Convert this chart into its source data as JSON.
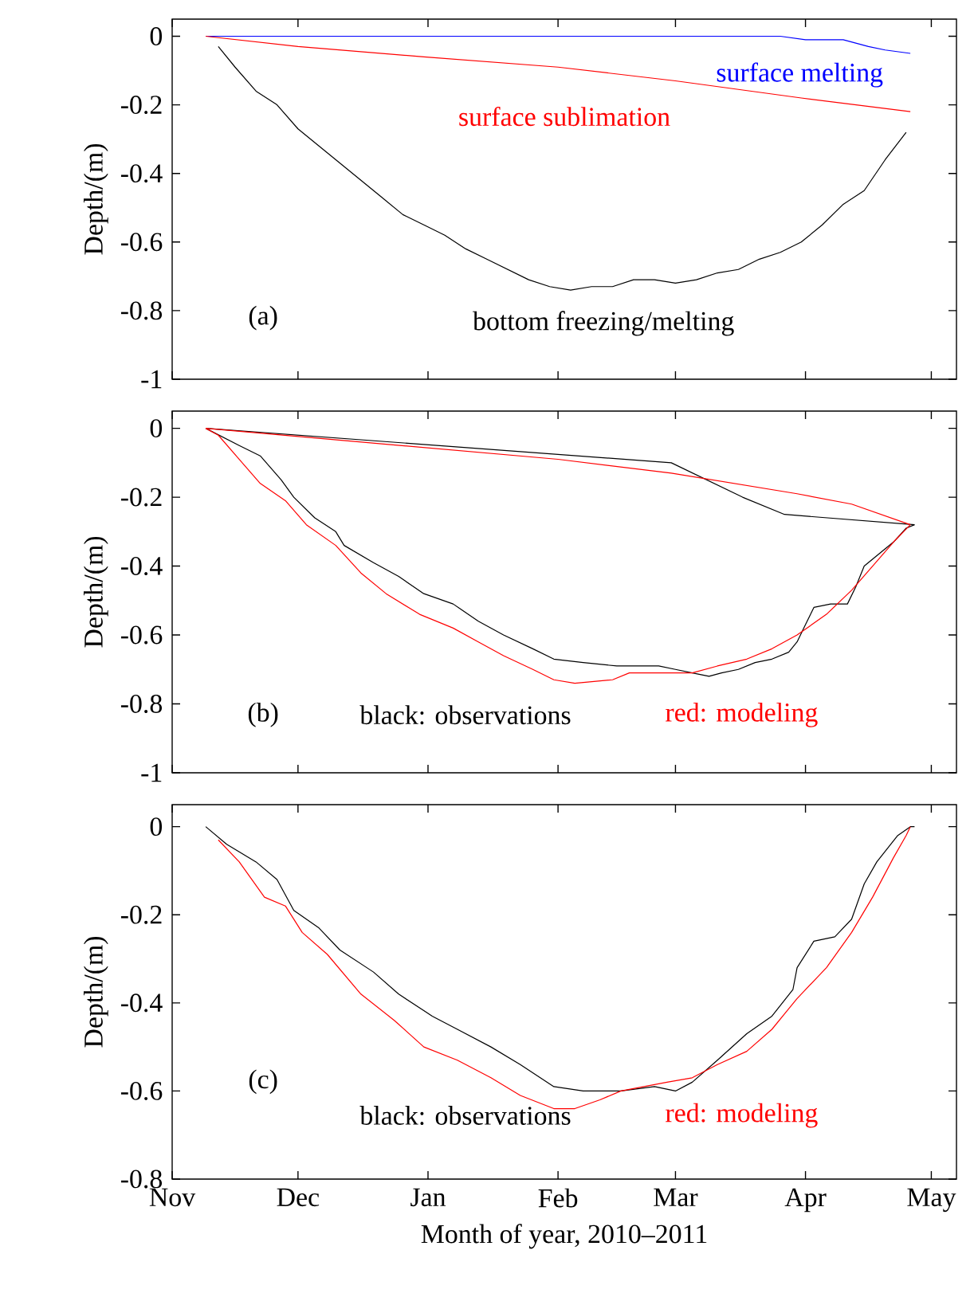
{
  "chart_data": [
    {
      "type": "line",
      "ylabel": "Depth/(m)",
      "tick_labels": "y",
      "annotations": [
        "(a)"
      ],
      "xlim": [
        "2010-11-01",
        "2011-05-07"
      ],
      "ylim": [
        -1,
        0.05
      ],
      "xticks": [
        {
          "value": "2010-11-01",
          "label": null
        },
        {
          "value": "2010-12-01",
          "label": null
        },
        {
          "value": "2011-01-01",
          "label": null
        },
        {
          "value": "2011-02-01",
          "label": null
        },
        {
          "value": "2011-03-01",
          "label": null
        },
        {
          "value": "2011-04-01",
          "label": null
        },
        {
          "value": "2011-05-01",
          "label": null
        }
      ],
      "yticks": [
        0,
        -0.2,
        -0.4,
        -0.6,
        -0.8,
        -1
      ],
      "series": [
        {
          "name": "surface melting",
          "color": "#0000ff",
          "x": [
            "2010-11-09",
            "2011-03-26",
            "2011-04-01",
            "2011-04-10",
            "2011-04-16",
            "2011-04-20",
            "2011-04-26"
          ],
          "values": [
            0,
            0,
            -0.01,
            -0.01,
            -0.03,
            -0.04,
            -0.05
          ]
        },
        {
          "name": "surface sublimation",
          "color": "#ff0000",
          "x": [
            "2010-11-09",
            "2010-12-01",
            "2010-12-31",
            "2011-02-01",
            "2011-03-01",
            "2011-03-31",
            "2011-04-26"
          ],
          "values": [
            0,
            -0.03,
            -0.06,
            -0.09,
            -0.13,
            -0.18,
            -0.22
          ]
        },
        {
          "name": "bottom freezing/melting",
          "color": "#000000",
          "x": [
            "2010-11-12",
            "2010-11-16",
            "2010-11-21",
            "2010-11-26",
            "2010-12-01",
            "2010-12-06",
            "2010-12-11",
            "2010-12-16",
            "2010-12-21",
            "2010-12-26",
            "2010-12-31",
            "2011-01-05",
            "2011-01-10",
            "2011-01-15",
            "2011-01-20",
            "2011-01-25",
            "2011-01-30",
            "2011-02-04",
            "2011-02-09",
            "2011-02-14",
            "2011-02-19",
            "2011-02-24",
            "2011-03-01",
            "2011-03-06",
            "2011-03-11",
            "2011-03-16",
            "2011-03-21",
            "2011-03-26",
            "2011-03-31",
            "2011-04-05",
            "2011-04-10",
            "2011-04-15",
            "2011-04-20",
            "2011-04-25"
          ],
          "values": [
            -0.03,
            -0.09,
            -0.16,
            -0.2,
            -0.27,
            -0.32,
            -0.37,
            -0.42,
            -0.47,
            -0.52,
            -0.55,
            -0.58,
            -0.62,
            -0.65,
            -0.68,
            -0.71,
            -0.73,
            -0.74,
            -0.73,
            -0.73,
            -0.71,
            -0.71,
            -0.72,
            -0.71,
            -0.69,
            -0.68,
            -0.65,
            -0.63,
            -0.6,
            -0.55,
            -0.49,
            -0.45,
            -0.36,
            -0.28
          ]
        }
      ]
    },
    {
      "type": "line",
      "ylabel": "Depth/(m)",
      "tick_labels": "y",
      "annotations": [
        "(b)"
      ],
      "xlim": [
        "2010-11-01",
        "2011-05-07"
      ],
      "ylim": [
        -1,
        0.05
      ],
      "xticks": [
        {
          "value": "2010-11-01",
          "label": null
        },
        {
          "value": "2010-12-01",
          "label": null
        },
        {
          "value": "2011-01-01",
          "label": null
        },
        {
          "value": "2011-02-01",
          "label": null
        },
        {
          "value": "2011-03-01",
          "label": null
        },
        {
          "value": "2011-04-01",
          "label": null
        },
        {
          "value": "2011-05-01",
          "label": null
        }
      ],
      "yticks": [
        0,
        -0.2,
        -0.4,
        -0.6,
        -0.8,
        -1
      ],
      "series": [
        {
          "name": "black: observations",
          "color": "#000000",
          "x": [
            "2010-11-09",
            "2010-11-17",
            "2010-11-22",
            "2010-11-27",
            "2010-11-30",
            "2010-12-05",
            "2010-12-10",
            "2010-12-12",
            "2010-12-19",
            "2010-12-25",
            "2010-12-31",
            "2011-01-07",
            "2011-01-13",
            "2011-01-19",
            "2011-01-26",
            "2011-01-31",
            "2011-02-07",
            "2011-02-15",
            "2011-02-20",
            "2011-02-25",
            "2011-03-01",
            "2011-03-05",
            "2011-03-09",
            "2011-03-12",
            "2011-03-16",
            "2011-03-20",
            "2011-03-24",
            "2011-03-28",
            "2011-03-30",
            "2011-04-01",
            "2011-04-03",
            "2011-04-07",
            "2011-04-11",
            "2011-04-13",
            "2011-04-15",
            "2011-04-18",
            "2011-04-22",
            "2011-04-25",
            "2011-04-27"
          ],
          "values": [
            0,
            -0.05,
            -0.08,
            -0.15,
            -0.2,
            -0.26,
            -0.3,
            -0.34,
            -0.39,
            -0.43,
            -0.48,
            -0.51,
            -0.56,
            -0.6,
            -0.64,
            -0.67,
            -0.68,
            -0.69,
            -0.69,
            -0.69,
            -0.7,
            -0.71,
            -0.72,
            -0.71,
            -0.7,
            -0.68,
            -0.67,
            -0.65,
            -0.62,
            -0.57,
            -0.52,
            -0.51,
            -0.51,
            -0.46,
            -0.4,
            -0.37,
            -0.33,
            -0.29,
            -0.28
          ]
        },
        {
          "color": "#000000",
          "x": [
            "2010-11-09",
            "2011-02-28",
            "2011-03-17",
            "2011-03-27",
            "2011-04-27"
          ],
          "values": [
            0,
            -0.1,
            -0.2,
            -0.25,
            -0.28
          ]
        },
        {
          "name": "red: modeling",
          "color": "#ff0000",
          "x": [
            "2010-11-09",
            "2010-11-12",
            "2010-11-17",
            "2010-11-22",
            "2010-11-28",
            "2010-12-03",
            "2010-12-10",
            "2010-12-16",
            "2010-12-22",
            "2010-12-30",
            "2011-01-07",
            "2011-01-13",
            "2011-01-19",
            "2011-01-26",
            "2011-01-31",
            "2011-02-05",
            "2011-02-14",
            "2011-02-18",
            "2011-02-27",
            "2011-03-05",
            "2011-03-11",
            "2011-03-18",
            "2011-03-24",
            "2011-03-30",
            "2011-04-06",
            "2011-04-12",
            "2011-04-17",
            "2011-04-22",
            "2011-04-26"
          ],
          "values": [
            0,
            -0.02,
            -0.09,
            -0.16,
            -0.21,
            -0.28,
            -0.34,
            -0.42,
            -0.48,
            -0.54,
            -0.58,
            -0.62,
            -0.66,
            -0.7,
            -0.73,
            -0.74,
            -0.73,
            -0.71,
            -0.71,
            -0.71,
            -0.69,
            -0.67,
            -0.64,
            -0.6,
            -0.54,
            -0.47,
            -0.4,
            -0.33,
            -0.28
          ]
        },
        {
          "color": "#ff0000",
          "x": [
            "2010-11-09",
            "2011-02-01",
            "2011-02-28",
            "2011-03-30",
            "2011-04-12",
            "2011-04-26"
          ],
          "values": [
            0,
            -0.09,
            -0.13,
            -0.19,
            -0.22,
            -0.28
          ]
        }
      ]
    },
    {
      "type": "line",
      "ylabel": "Depth/(m)",
      "xlabel": "Month of year, 2010–2011",
      "annotations": [
        "(c)"
      ],
      "xlim": [
        "2010-11-01",
        "2011-05-07"
      ],
      "ylim": [
        -0.8,
        0.05
      ],
      "xticks": [
        {
          "value": "2010-11-01",
          "label": "Nov"
        },
        {
          "value": "2010-12-01",
          "label": "Dec"
        },
        {
          "value": "2011-01-01",
          "label": "Jan"
        },
        {
          "value": "2011-02-01",
          "label": "Feb"
        },
        {
          "value": "2011-03-01",
          "label": "Mar"
        },
        {
          "value": "2011-04-01",
          "label": "Apr"
        },
        {
          "value": "2011-05-01",
          "label": "May"
        }
      ],
      "yticks": [
        0,
        -0.2,
        -0.4,
        -0.6,
        -0.8
      ],
      "series": [
        {
          "name": "black: observations",
          "color": "#000000",
          "x": [
            "2010-11-09",
            "2010-11-14",
            "2010-11-21",
            "2010-11-26",
            "2010-11-30",
            "2010-12-06",
            "2010-12-11",
            "2010-12-19",
            "2010-12-25",
            "2011-01-02",
            "2011-01-08",
            "2011-01-16",
            "2011-01-23",
            "2011-01-31",
            "2011-02-07",
            "2011-02-16",
            "2011-02-24",
            "2011-03-01",
            "2011-03-05",
            "2011-03-11",
            "2011-03-18",
            "2011-03-24",
            "2011-03-29",
            "2011-03-30",
            "2011-04-03",
            "2011-04-08",
            "2011-04-12",
            "2011-04-15",
            "2011-04-18",
            "2011-04-23",
            "2011-04-26",
            "2011-04-27"
          ],
          "values": [
            0,
            -0.04,
            -0.08,
            -0.12,
            -0.19,
            -0.23,
            -0.28,
            -0.33,
            -0.38,
            -0.43,
            -0.46,
            -0.5,
            -0.54,
            -0.59,
            -0.6,
            -0.6,
            -0.59,
            -0.6,
            -0.58,
            -0.53,
            -0.47,
            -0.43,
            -0.37,
            -0.32,
            -0.26,
            -0.25,
            -0.21,
            -0.13,
            -0.08,
            -0.02,
            0,
            0
          ]
        },
        {
          "name": "red: modeling",
          "color": "#ff0000",
          "x": [
            "2010-11-12",
            "2010-11-17",
            "2010-11-23",
            "2010-11-28",
            "2010-12-02",
            "2010-12-08",
            "2010-12-16",
            "2010-12-24",
            "2010-12-31",
            "2011-01-08",
            "2011-01-16",
            "2011-01-23",
            "2011-01-31",
            "2011-02-05",
            "2011-02-11",
            "2011-02-16",
            "2011-02-27",
            "2011-03-05",
            "2011-03-11",
            "2011-03-18",
            "2011-03-24",
            "2011-03-30",
            "2011-04-06",
            "2011-04-12",
            "2011-04-17",
            "2011-04-22",
            "2011-04-25",
            "2011-04-26"
          ],
          "values": [
            -0.03,
            -0.08,
            -0.16,
            -0.18,
            -0.24,
            -0.29,
            -0.38,
            -0.44,
            -0.5,
            -0.53,
            -0.57,
            -0.61,
            -0.64,
            -0.64,
            -0.62,
            -0.6,
            -0.58,
            -0.57,
            -0.54,
            -0.51,
            -0.46,
            -0.39,
            -0.32,
            -0.24,
            -0.16,
            -0.07,
            -0.02,
            0
          ]
        }
      ]
    }
  ]
}
